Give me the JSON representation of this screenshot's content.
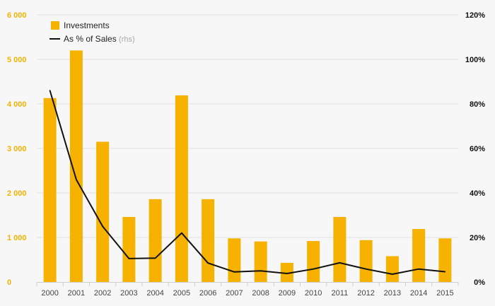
{
  "chart_data": {
    "type": "bar",
    "categories": [
      "2000",
      "2001",
      "2002",
      "2003",
      "2004",
      "2005",
      "2006",
      "2007",
      "2008",
      "2009",
      "2010",
      "2011",
      "2012",
      "2013",
      "2014",
      "2015"
    ],
    "series": [
      {
        "name": "Investments",
        "type": "bar",
        "axis": "left",
        "color": "#f7b200",
        "values": [
          4130,
          5200,
          3150,
          1460,
          1860,
          4190,
          1860,
          980,
          910,
          430,
          920,
          1460,
          940,
          580,
          1190,
          980
        ]
      },
      {
        "name": "As % of Sales",
        "name_suffix": "(rhs)",
        "type": "line",
        "axis": "right",
        "color": "#111111",
        "values": [
          86,
          46,
          25,
          10.5,
          10.7,
          22,
          8.5,
          4.5,
          5,
          3.8,
          5.8,
          8.6,
          5.8,
          3.5,
          5.8,
          4.6
        ]
      }
    ],
    "y_left": {
      "min": 0,
      "max": 6000,
      "ticks": [
        0,
        1000,
        2000,
        3000,
        4000,
        5000,
        6000
      ],
      "tick_labels": [
        "0",
        "1 000",
        "2 000",
        "3 000",
        "4 000",
        "5 000",
        "6 000"
      ]
    },
    "y_right": {
      "min": 0,
      "max": 120,
      "ticks": [
        0,
        20,
        40,
        60,
        80,
        100,
        120
      ],
      "tick_labels": [
        "0%",
        "20%",
        "40%",
        "60%",
        "80%",
        "100%",
        "120%"
      ]
    },
    "grid": true,
    "legend_position": "top-left"
  }
}
